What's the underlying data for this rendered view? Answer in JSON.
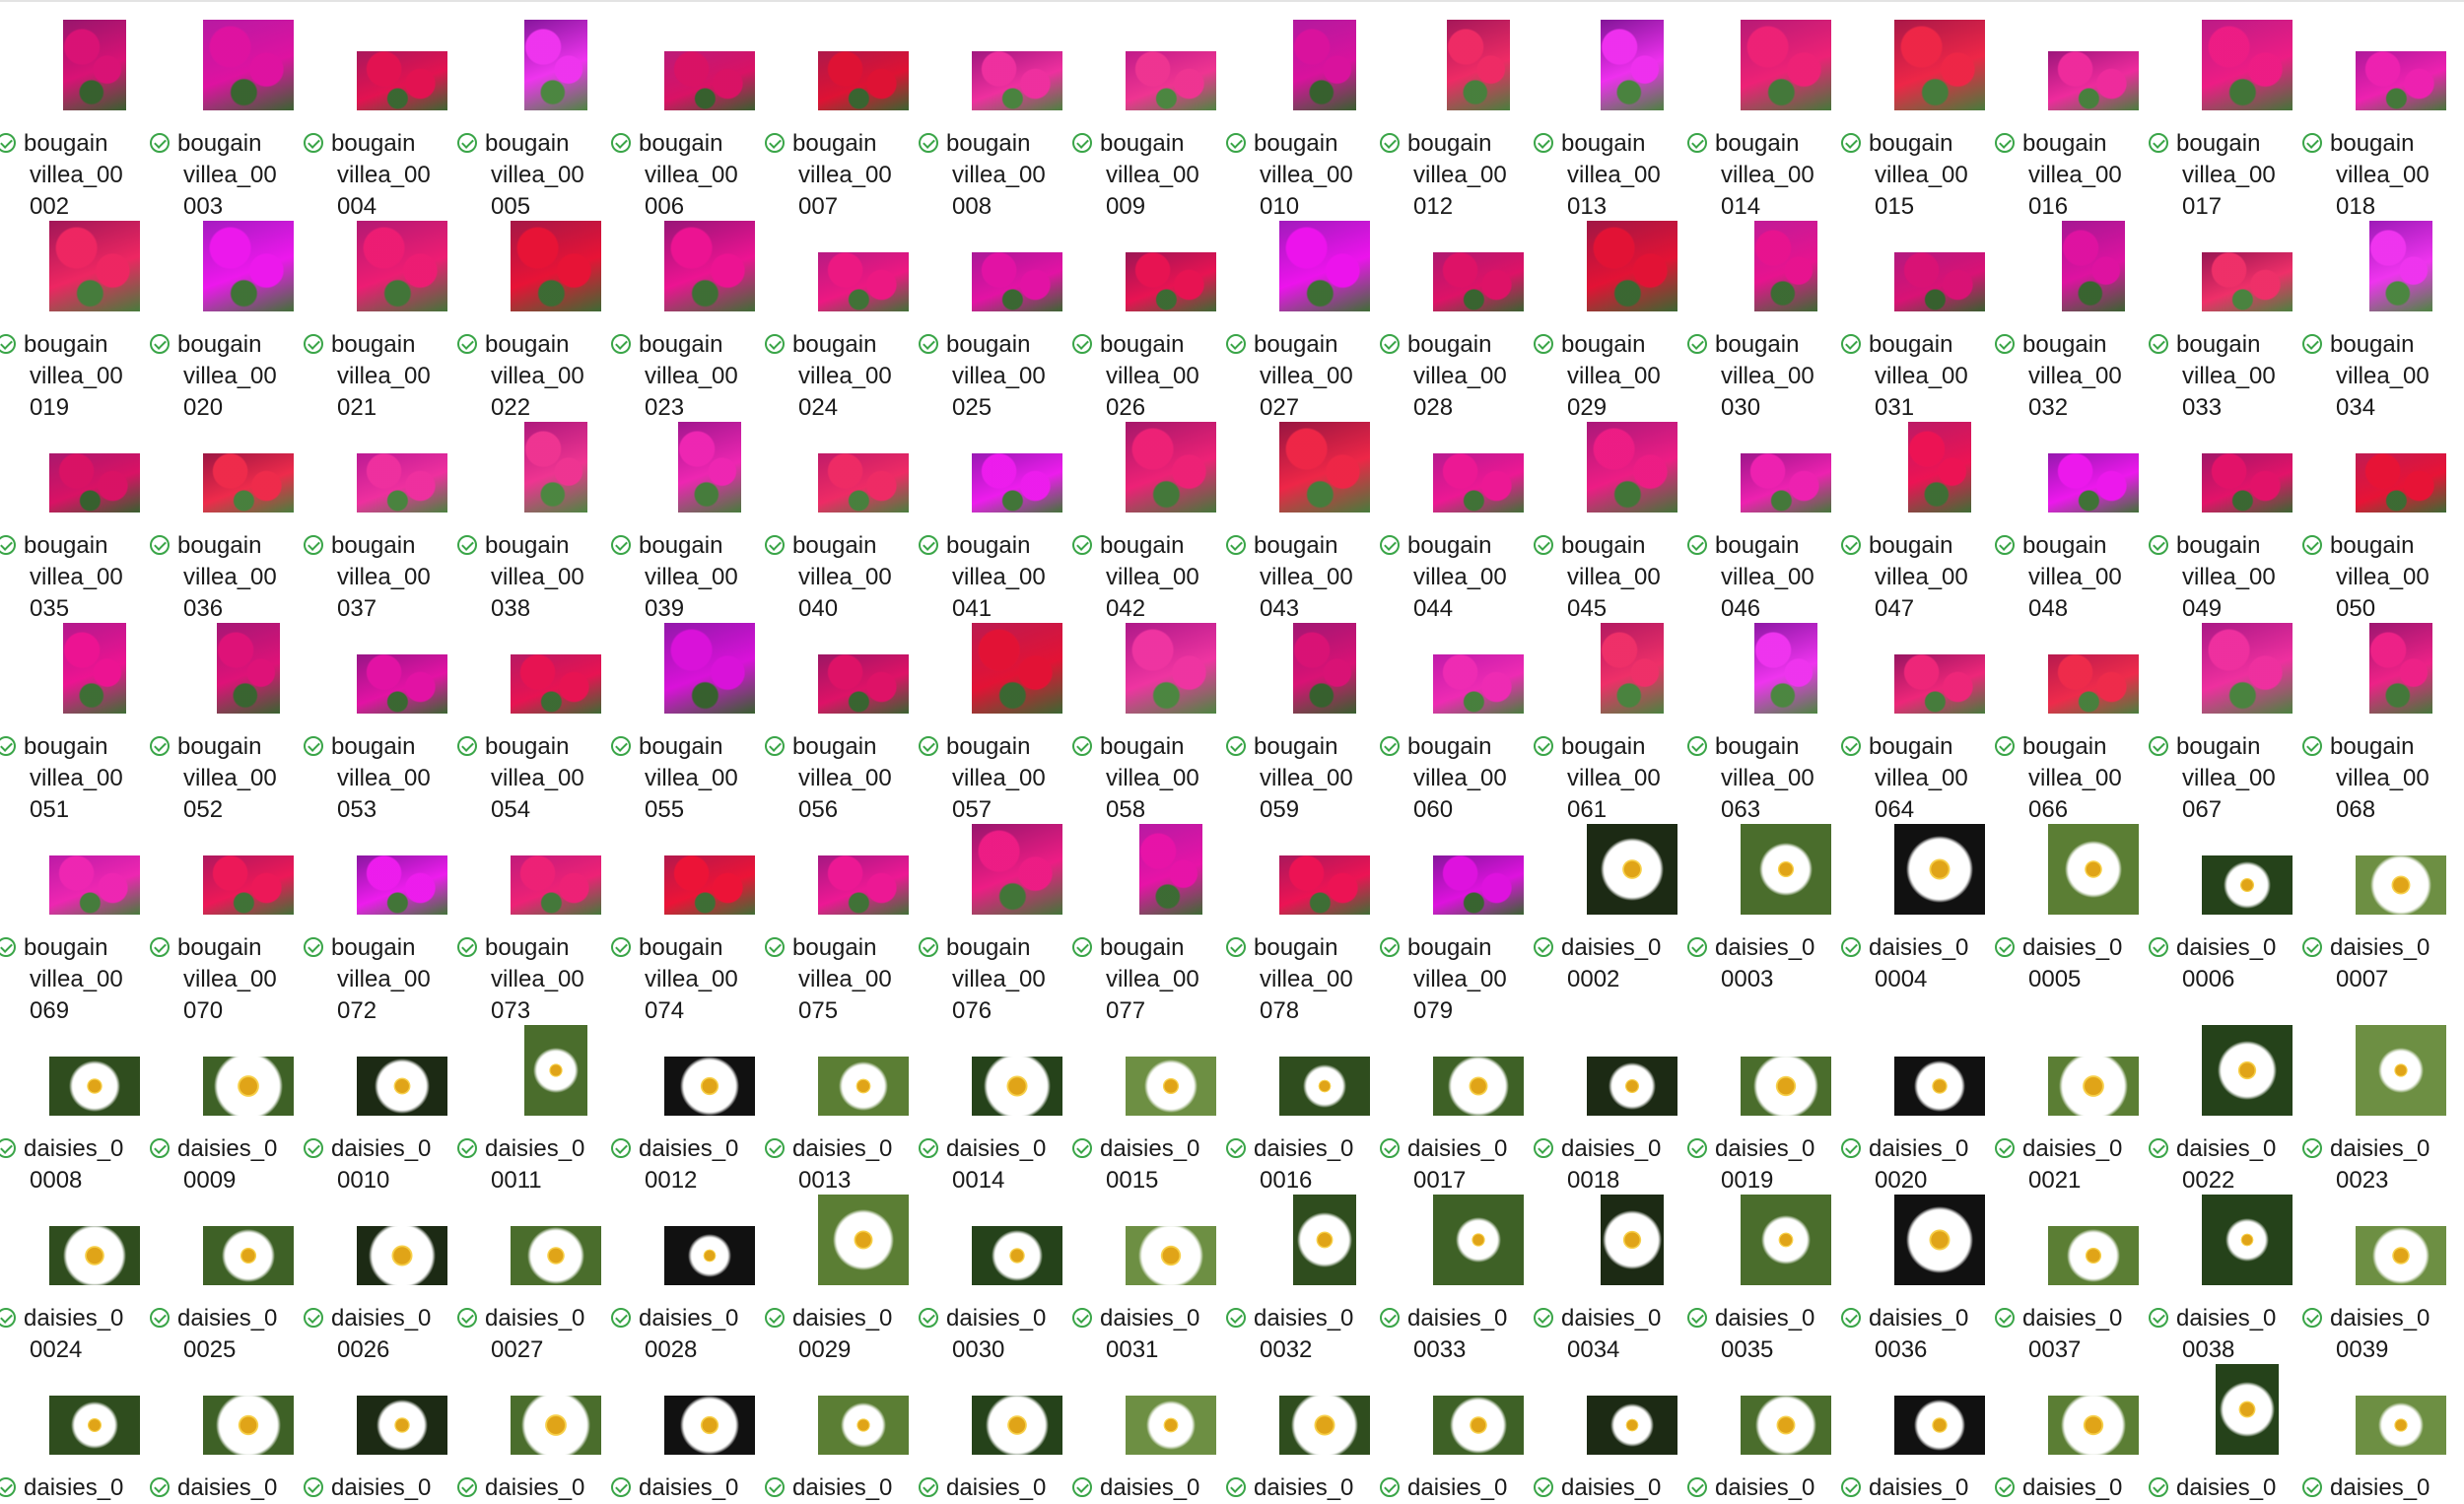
{
  "view": {
    "columns": 16,
    "status_icon": "sync-ok-check-icon",
    "colors": {
      "status_green": "#3aa548",
      "text": "#1a1a1a"
    }
  },
  "files": [
    {
      "l1": "bougain",
      "l2": "villea_00",
      "l3": "002",
      "kind": "bougainvillea",
      "shape": "portrait"
    },
    {
      "l1": "bougain",
      "l2": "villea_00",
      "l3": "003",
      "kind": "bougainvillea",
      "shape": "landscape"
    },
    {
      "l1": "bougain",
      "l2": "villea_00",
      "l3": "004",
      "kind": "bougainvillea",
      "shape": "wide"
    },
    {
      "l1": "bougain",
      "l2": "villea_00",
      "l3": "005",
      "kind": "bougainvillea",
      "shape": "portrait"
    },
    {
      "l1": "bougain",
      "l2": "villea_00",
      "l3": "006",
      "kind": "bougainvillea",
      "shape": "wide"
    },
    {
      "l1": "bougain",
      "l2": "villea_00",
      "l3": "007",
      "kind": "bougainvillea",
      "shape": "wide"
    },
    {
      "l1": "bougain",
      "l2": "villea_00",
      "l3": "008",
      "kind": "bougainvillea",
      "shape": "wide"
    },
    {
      "l1": "bougain",
      "l2": "villea_00",
      "l3": "009",
      "kind": "bougainvillea",
      "shape": "wide"
    },
    {
      "l1": "bougain",
      "l2": "villea_00",
      "l3": "010",
      "kind": "bougainvillea",
      "shape": "portrait"
    },
    {
      "l1": "bougain",
      "l2": "villea_00",
      "l3": "012",
      "kind": "bougainvillea",
      "shape": "portrait"
    },
    {
      "l1": "bougain",
      "l2": "villea_00",
      "l3": "013",
      "kind": "bougainvillea",
      "shape": "portrait"
    },
    {
      "l1": "bougain",
      "l2": "villea_00",
      "l3": "014",
      "kind": "bougainvillea",
      "shape": "landscape"
    },
    {
      "l1": "bougain",
      "l2": "villea_00",
      "l3": "015",
      "kind": "bougainvillea",
      "shape": "landscape"
    },
    {
      "l1": "bougain",
      "l2": "villea_00",
      "l3": "016",
      "kind": "bougainvillea",
      "shape": "wide"
    },
    {
      "l1": "bougain",
      "l2": "villea_00",
      "l3": "017",
      "kind": "bougainvillea",
      "shape": "landscape"
    },
    {
      "l1": "bougain",
      "l2": "villea_00",
      "l3": "018",
      "kind": "bougainvillea",
      "shape": "wide"
    },
    {
      "l1": "bougain",
      "l2": "villea_00",
      "l3": "019",
      "kind": "bougainvillea",
      "shape": "landscape"
    },
    {
      "l1": "bougain",
      "l2": "villea_00",
      "l3": "020",
      "kind": "bougainvillea",
      "shape": "landscape"
    },
    {
      "l1": "bougain",
      "l2": "villea_00",
      "l3": "021",
      "kind": "bougainvillea",
      "shape": "landscape"
    },
    {
      "l1": "bougain",
      "l2": "villea_00",
      "l3": "022",
      "kind": "bougainvillea",
      "shape": "landscape"
    },
    {
      "l1": "bougain",
      "l2": "villea_00",
      "l3": "023",
      "kind": "bougainvillea",
      "shape": "landscape"
    },
    {
      "l1": "bougain",
      "l2": "villea_00",
      "l3": "024",
      "kind": "bougainvillea",
      "shape": "wide"
    },
    {
      "l1": "bougain",
      "l2": "villea_00",
      "l3": "025",
      "kind": "bougainvillea",
      "shape": "wide"
    },
    {
      "l1": "bougain",
      "l2": "villea_00",
      "l3": "026",
      "kind": "bougainvillea",
      "shape": "wide"
    },
    {
      "l1": "bougain",
      "l2": "villea_00",
      "l3": "027",
      "kind": "bougainvillea",
      "shape": "landscape"
    },
    {
      "l1": "bougain",
      "l2": "villea_00",
      "l3": "028",
      "kind": "bougainvillea",
      "shape": "wide"
    },
    {
      "l1": "bougain",
      "l2": "villea_00",
      "l3": "029",
      "kind": "bougainvillea",
      "shape": "landscape"
    },
    {
      "l1": "bougain",
      "l2": "villea_00",
      "l3": "030",
      "kind": "bougainvillea",
      "shape": "portrait"
    },
    {
      "l1": "bougain",
      "l2": "villea_00",
      "l3": "031",
      "kind": "bougainvillea",
      "shape": "wide"
    },
    {
      "l1": "bougain",
      "l2": "villea_00",
      "l3": "032",
      "kind": "bougainvillea",
      "shape": "portrait"
    },
    {
      "l1": "bougain",
      "l2": "villea_00",
      "l3": "033",
      "kind": "bougainvillea",
      "shape": "wide"
    },
    {
      "l1": "bougain",
      "l2": "villea_00",
      "l3": "034",
      "kind": "bougainvillea",
      "shape": "portrait"
    },
    {
      "l1": "bougain",
      "l2": "villea_00",
      "l3": "035",
      "kind": "bougainvillea",
      "shape": "wide"
    },
    {
      "l1": "bougain",
      "l2": "villea_00",
      "l3": "036",
      "kind": "bougainvillea",
      "shape": "wide"
    },
    {
      "l1": "bougain",
      "l2": "villea_00",
      "l3": "037",
      "kind": "bougainvillea",
      "shape": "wide"
    },
    {
      "l1": "bougain",
      "l2": "villea_00",
      "l3": "038",
      "kind": "bougainvillea",
      "shape": "portrait"
    },
    {
      "l1": "bougain",
      "l2": "villea_00",
      "l3": "039",
      "kind": "bougainvillea",
      "shape": "portrait"
    },
    {
      "l1": "bougain",
      "l2": "villea_00",
      "l3": "040",
      "kind": "bougainvillea",
      "shape": "wide"
    },
    {
      "l1": "bougain",
      "l2": "villea_00",
      "l3": "041",
      "kind": "bougainvillea",
      "shape": "wide"
    },
    {
      "l1": "bougain",
      "l2": "villea_00",
      "l3": "042",
      "kind": "bougainvillea",
      "shape": "landscape"
    },
    {
      "l1": "bougain",
      "l2": "villea_00",
      "l3": "043",
      "kind": "bougainvillea",
      "shape": "landscape"
    },
    {
      "l1": "bougain",
      "l2": "villea_00",
      "l3": "044",
      "kind": "bougainvillea",
      "shape": "wide"
    },
    {
      "l1": "bougain",
      "l2": "villea_00",
      "l3": "045",
      "kind": "bougainvillea",
      "shape": "landscape"
    },
    {
      "l1": "bougain",
      "l2": "villea_00",
      "l3": "046",
      "kind": "bougainvillea",
      "shape": "wide"
    },
    {
      "l1": "bougain",
      "l2": "villea_00",
      "l3": "047",
      "kind": "bougainvillea",
      "shape": "portrait"
    },
    {
      "l1": "bougain",
      "l2": "villea_00",
      "l3": "048",
      "kind": "bougainvillea",
      "shape": "wide"
    },
    {
      "l1": "bougain",
      "l2": "villea_00",
      "l3": "049",
      "kind": "bougainvillea",
      "shape": "wide"
    },
    {
      "l1": "bougain",
      "l2": "villea_00",
      "l3": "050",
      "kind": "bougainvillea",
      "shape": "wide"
    },
    {
      "l1": "bougain",
      "l2": "villea_00",
      "l3": "051",
      "kind": "bougainvillea",
      "shape": "portrait"
    },
    {
      "l1": "bougain",
      "l2": "villea_00",
      "l3": "052",
      "kind": "bougainvillea",
      "shape": "portrait"
    },
    {
      "l1": "bougain",
      "l2": "villea_00",
      "l3": "053",
      "kind": "bougainvillea",
      "shape": "wide"
    },
    {
      "l1": "bougain",
      "l2": "villea_00",
      "l3": "054",
      "kind": "bougainvillea",
      "shape": "wide"
    },
    {
      "l1": "bougain",
      "l2": "villea_00",
      "l3": "055",
      "kind": "bougainvillea",
      "shape": "landscape"
    },
    {
      "l1": "bougain",
      "l2": "villea_00",
      "l3": "056",
      "kind": "bougainvillea",
      "shape": "wide"
    },
    {
      "l1": "bougain",
      "l2": "villea_00",
      "l3": "057",
      "kind": "bougainvillea",
      "shape": "landscape"
    },
    {
      "l1": "bougain",
      "l2": "villea_00",
      "l3": "058",
      "kind": "bougainvillea",
      "shape": "landscape"
    },
    {
      "l1": "bougain",
      "l2": "villea_00",
      "l3": "059",
      "kind": "bougainvillea",
      "shape": "portrait"
    },
    {
      "l1": "bougain",
      "l2": "villea_00",
      "l3": "060",
      "kind": "bougainvillea",
      "shape": "wide"
    },
    {
      "l1": "bougain",
      "l2": "villea_00",
      "l3": "061",
      "kind": "bougainvillea",
      "shape": "portrait"
    },
    {
      "l1": "bougain",
      "l2": "villea_00",
      "l3": "063",
      "kind": "bougainvillea",
      "shape": "portrait"
    },
    {
      "l1": "bougain",
      "l2": "villea_00",
      "l3": "064",
      "kind": "bougainvillea",
      "shape": "wide"
    },
    {
      "l1": "bougain",
      "l2": "villea_00",
      "l3": "066",
      "kind": "bougainvillea",
      "shape": "wide"
    },
    {
      "l1": "bougain",
      "l2": "villea_00",
      "l3": "067",
      "kind": "bougainvillea",
      "shape": "landscape"
    },
    {
      "l1": "bougain",
      "l2": "villea_00",
      "l3": "068",
      "kind": "bougainvillea",
      "shape": "portrait"
    },
    {
      "l1": "bougain",
      "l2": "villea_00",
      "l3": "069",
      "kind": "bougainvillea",
      "shape": "wide"
    },
    {
      "l1": "bougain",
      "l2": "villea_00",
      "l3": "070",
      "kind": "bougainvillea",
      "shape": "wide"
    },
    {
      "l1": "bougain",
      "l2": "villea_00",
      "l3": "072",
      "kind": "bougainvillea",
      "shape": "wide"
    },
    {
      "l1": "bougain",
      "l2": "villea_00",
      "l3": "073",
      "kind": "bougainvillea",
      "shape": "wide"
    },
    {
      "l1": "bougain",
      "l2": "villea_00",
      "l3": "074",
      "kind": "bougainvillea",
      "shape": "wide"
    },
    {
      "l1": "bougain",
      "l2": "villea_00",
      "l3": "075",
      "kind": "bougainvillea",
      "shape": "wide"
    },
    {
      "l1": "bougain",
      "l2": "villea_00",
      "l3": "076",
      "kind": "bougainvillea",
      "shape": "landscape"
    },
    {
      "l1": "bougain",
      "l2": "villea_00",
      "l3": "077",
      "kind": "bougainvillea",
      "shape": "portrait"
    },
    {
      "l1": "bougain",
      "l2": "villea_00",
      "l3": "078",
      "kind": "bougainvillea",
      "shape": "wide"
    },
    {
      "l1": "bougain",
      "l2": "villea_00",
      "l3": "079",
      "kind": "bougainvillea",
      "shape": "wide"
    },
    {
      "l1": "daisies_0",
      "l2": "0002",
      "l3": "",
      "kind": "daisy",
      "shape": "landscape"
    },
    {
      "l1": "daisies_0",
      "l2": "0003",
      "l3": "",
      "kind": "daisy",
      "shape": "landscape"
    },
    {
      "l1": "daisies_0",
      "l2": "0004",
      "l3": "",
      "kind": "daisy",
      "shape": "landscape"
    },
    {
      "l1": "daisies_0",
      "l2": "0005",
      "l3": "",
      "kind": "daisy",
      "shape": "landscape"
    },
    {
      "l1": "daisies_0",
      "l2": "0006",
      "l3": "",
      "kind": "daisy",
      "shape": "wide"
    },
    {
      "l1": "daisies_0",
      "l2": "0007",
      "l3": "",
      "kind": "daisy",
      "shape": "wide"
    },
    {
      "l1": "daisies_0",
      "l2": "0008",
      "l3": "",
      "kind": "daisy",
      "shape": "wide"
    },
    {
      "l1": "daisies_0",
      "l2": "0009",
      "l3": "",
      "kind": "daisy",
      "shape": "wide"
    },
    {
      "l1": "daisies_0",
      "l2": "0010",
      "l3": "",
      "kind": "daisy",
      "shape": "wide"
    },
    {
      "l1": "daisies_0",
      "l2": "0011",
      "l3": "",
      "kind": "daisy",
      "shape": "portrait"
    },
    {
      "l1": "daisies_0",
      "l2": "0012",
      "l3": "",
      "kind": "daisy",
      "shape": "wide"
    },
    {
      "l1": "daisies_0",
      "l2": "0013",
      "l3": "",
      "kind": "daisy",
      "shape": "wide"
    },
    {
      "l1": "daisies_0",
      "l2": "0014",
      "l3": "",
      "kind": "daisy",
      "shape": "wide"
    },
    {
      "l1": "daisies_0",
      "l2": "0015",
      "l3": "",
      "kind": "daisy",
      "shape": "wide"
    },
    {
      "l1": "daisies_0",
      "l2": "0016",
      "l3": "",
      "kind": "daisy",
      "shape": "wide"
    },
    {
      "l1": "daisies_0",
      "l2": "0017",
      "l3": "",
      "kind": "daisy",
      "shape": "wide"
    },
    {
      "l1": "daisies_0",
      "l2": "0018",
      "l3": "",
      "kind": "daisy",
      "shape": "wide"
    },
    {
      "l1": "daisies_0",
      "l2": "0019",
      "l3": "",
      "kind": "daisy",
      "shape": "wide"
    },
    {
      "l1": "daisies_0",
      "l2": "0020",
      "l3": "",
      "kind": "daisy",
      "shape": "wide"
    },
    {
      "l1": "daisies_0",
      "l2": "0021",
      "l3": "",
      "kind": "daisy",
      "shape": "wide"
    },
    {
      "l1": "daisies_0",
      "l2": "0022",
      "l3": "",
      "kind": "daisy",
      "shape": "landscape"
    },
    {
      "l1": "daisies_0",
      "l2": "0023",
      "l3": "",
      "kind": "daisy",
      "shape": "landscape"
    },
    {
      "l1": "daisies_0",
      "l2": "0024",
      "l3": "",
      "kind": "daisy",
      "shape": "wide"
    },
    {
      "l1": "daisies_0",
      "l2": "0025",
      "l3": "",
      "kind": "daisy",
      "shape": "wide"
    },
    {
      "l1": "daisies_0",
      "l2": "0026",
      "l3": "",
      "kind": "daisy",
      "shape": "wide"
    },
    {
      "l1": "daisies_0",
      "l2": "0027",
      "l3": "",
      "kind": "daisy",
      "shape": "wide"
    },
    {
      "l1": "daisies_0",
      "l2": "0028",
      "l3": "",
      "kind": "daisy",
      "shape": "wide"
    },
    {
      "l1": "daisies_0",
      "l2": "0029",
      "l3": "",
      "kind": "daisy",
      "shape": "landscape"
    },
    {
      "l1": "daisies_0",
      "l2": "0030",
      "l3": "",
      "kind": "daisy",
      "shape": "wide"
    },
    {
      "l1": "daisies_0",
      "l2": "0031",
      "l3": "",
      "kind": "daisy",
      "shape": "wide"
    },
    {
      "l1": "daisies_0",
      "l2": "0032",
      "l3": "",
      "kind": "daisy",
      "shape": "portrait"
    },
    {
      "l1": "daisies_0",
      "l2": "0033",
      "l3": "",
      "kind": "daisy",
      "shape": "landscape"
    },
    {
      "l1": "daisies_0",
      "l2": "0034",
      "l3": "",
      "kind": "daisy",
      "shape": "portrait"
    },
    {
      "l1": "daisies_0",
      "l2": "0035",
      "l3": "",
      "kind": "daisy",
      "shape": "landscape"
    },
    {
      "l1": "daisies_0",
      "l2": "0036",
      "l3": "",
      "kind": "daisy",
      "shape": "landscape"
    },
    {
      "l1": "daisies_0",
      "l2": "0037",
      "l3": "",
      "kind": "daisy",
      "shape": "wide"
    },
    {
      "l1": "daisies_0",
      "l2": "0038",
      "l3": "",
      "kind": "daisy",
      "shape": "landscape"
    },
    {
      "l1": "daisies_0",
      "l2": "0039",
      "l3": "",
      "kind": "daisy",
      "shape": "wide"
    },
    {
      "l1": "daisies_0",
      "l2": "",
      "l3": "",
      "kind": "daisy",
      "shape": "wide"
    },
    {
      "l1": "daisies_0",
      "l2": "",
      "l3": "",
      "kind": "daisy",
      "shape": "wide"
    },
    {
      "l1": "daisies_0",
      "l2": "",
      "l3": "",
      "kind": "daisy",
      "shape": "wide"
    },
    {
      "l1": "daisies_0",
      "l2": "",
      "l3": "",
      "kind": "daisy",
      "shape": "wide"
    },
    {
      "l1": "daisies_0",
      "l2": "",
      "l3": "",
      "kind": "daisy",
      "shape": "wide"
    },
    {
      "l1": "daisies_0",
      "l2": "",
      "l3": "",
      "kind": "daisy",
      "shape": "wide"
    },
    {
      "l1": "daisies_0",
      "l2": "",
      "l3": "",
      "kind": "daisy",
      "shape": "wide"
    },
    {
      "l1": "daisies_0",
      "l2": "",
      "l3": "",
      "kind": "daisy",
      "shape": "wide"
    },
    {
      "l1": "daisies_0",
      "l2": "",
      "l3": "",
      "kind": "daisy",
      "shape": "wide"
    },
    {
      "l1": "daisies_0",
      "l2": "",
      "l3": "",
      "kind": "daisy",
      "shape": "wide"
    },
    {
      "l1": "daisies_0",
      "l2": "",
      "l3": "",
      "kind": "daisy",
      "shape": "wide"
    },
    {
      "l1": "daisies_0",
      "l2": "",
      "l3": "",
      "kind": "daisy",
      "shape": "wide"
    },
    {
      "l1": "daisies_0",
      "l2": "",
      "l3": "",
      "kind": "daisy",
      "shape": "wide"
    },
    {
      "l1": "daisies_0",
      "l2": "",
      "l3": "",
      "kind": "daisy",
      "shape": "wide"
    },
    {
      "l1": "daisies_0",
      "l2": "",
      "l3": "",
      "kind": "daisy",
      "shape": "portrait"
    },
    {
      "l1": "daisies_0",
      "l2": "",
      "l3": "",
      "kind": "daisy",
      "shape": "wide"
    }
  ]
}
